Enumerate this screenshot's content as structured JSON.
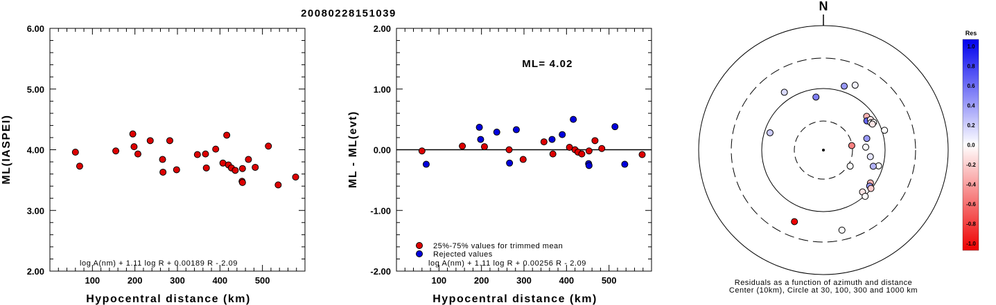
{
  "title": "20080228151039",
  "chart_data": [
    {
      "type": "scatter",
      "xlabel": "Hypocentral distance (km)",
      "ylabel": "ML(IASPEI)",
      "xlim": [
        0,
        600
      ],
      "ylim": [
        2.0,
        6.0
      ],
      "xticks": [
        "100",
        "200",
        "300",
        "400",
        "500"
      ],
      "yticks": [
        "2.00",
        "3.00",
        "4.00",
        "5.00",
        "6.00"
      ],
      "annotation": "log A(nm) + 1.11 log R + 0.00189 R - 2.09",
      "series": [
        {
          "color": "#dd0000",
          "points": [
            [
              60,
              3.96
            ],
            [
              70,
              3.73
            ],
            [
              155,
              3.98
            ],
            [
              195,
              4.26
            ],
            [
              198,
              4.05
            ],
            [
              207,
              3.93
            ],
            [
              236,
              4.15
            ],
            [
              265,
              3.84
            ],
            [
              266,
              3.63
            ],
            [
              282,
              4.15
            ],
            [
              298,
              3.67
            ],
            [
              347,
              3.92
            ],
            [
              366,
              3.93
            ],
            [
              368,
              3.7
            ],
            [
              390,
              4.01
            ],
            [
              407,
              3.78
            ],
            [
              416,
              4.24
            ],
            [
              420,
              3.75
            ],
            [
              427,
              3.7
            ],
            [
              436,
              3.66
            ],
            [
              452,
              3.48
            ],
            [
              453,
              3.46
            ],
            [
              453,
              3.69
            ],
            [
              467,
              3.84
            ],
            [
              483,
              3.71
            ],
            [
              514,
              4.06
            ],
            [
              537,
              3.42
            ],
            [
              578,
              3.55
            ]
          ]
        }
      ]
    },
    {
      "type": "scatter",
      "xlabel": "Hypocentral distance (km)",
      "ylabel": "ML - ML(evt)",
      "xlim": [
        0,
        600
      ],
      "ylim": [
        -2.0,
        2.0
      ],
      "xticks": [
        "100",
        "200",
        "300",
        "400",
        "500"
      ],
      "yticks": [
        "-2.00",
        "-1.00",
        "0.00",
        "1.00",
        "2.00"
      ],
      "ml_label": "ML= 4.02",
      "annotation": "log A(nm) + 1.11 log R + 0.00256 R - 2.09",
      "legend": [
        "25%-75% values for trimmed mean",
        "Rejected values"
      ],
      "legend_position": "bottom-left",
      "series": [
        {
          "color": "#dd0000",
          "points": [
            [
              60,
              -0.02
            ],
            [
              155,
              0.06
            ],
            [
              207,
              0.05
            ],
            [
              265,
              0.0
            ],
            [
              298,
              -0.16
            ],
            [
              347,
              0.13
            ],
            [
              368,
              -0.07
            ],
            [
              407,
              0.04
            ],
            [
              420,
              0.0
            ],
            [
              427,
              -0.04
            ],
            [
              436,
              -0.07
            ],
            [
              453,
              -0.02
            ],
            [
              467,
              0.15
            ],
            [
              483,
              0.02
            ],
            [
              578,
              -0.08
            ]
          ]
        },
        {
          "color": "#0000dd",
          "points": [
            [
              70,
              -0.24
            ],
            [
              195,
              0.37
            ],
            [
              198,
              0.17
            ],
            [
              236,
              0.29
            ],
            [
              266,
              -0.22
            ],
            [
              282,
              0.33
            ],
            [
              366,
              0.17
            ],
            [
              390,
              0.25
            ],
            [
              416,
              0.5
            ],
            [
              452,
              -0.23
            ],
            [
              453,
              -0.26
            ],
            [
              514,
              0.38
            ],
            [
              537,
              -0.24
            ]
          ]
        }
      ]
    },
    {
      "type": "scatter",
      "subtype": "polar-residuals",
      "north_label": "N",
      "caption": [
        "Residuals as a function of azimuth and distance",
        "Center (10km), Circle at 30, 100, 300 and 1000 km"
      ],
      "colorbar": {
        "title": "Res",
        "labels": [
          "1.0",
          "0.8",
          "0.6",
          "0.4",
          "0.2",
          "0.0",
          "-0.2",
          "-0.4",
          "-0.6",
          "-0.8",
          "-1.0"
        ]
      },
      "points": [
        {
          "az": 326,
          "dist": 560,
          "res": 0.15
        },
        {
          "az": 352,
          "dist": 430,
          "res": 0.5
        },
        {
          "az": 18,
          "dist": 540,
          "res": 0.4
        },
        {
          "az": 26,
          "dist": 580,
          "res": 0.05
        },
        {
          "az": 52,
          "dist": 440,
          "res": -0.3
        },
        {
          "az": 56,
          "dist": 420,
          "res": 0.6
        },
        {
          "az": 57,
          "dist": 450,
          "res": -0.1
        },
        {
          "az": 60,
          "dist": 440,
          "res": 0.0
        },
        {
          "az": 61,
          "dist": 460,
          "res": 0.0
        },
        {
          "az": 62,
          "dist": 445,
          "res": -0.1
        },
        {
          "az": 72,
          "dist": 515,
          "res": 0.0
        },
        {
          "az": 75,
          "dist": 360,
          "res": 0.4
        },
        {
          "az": 81,
          "dist": 230,
          "res": -0.5
        },
        {
          "az": 86,
          "dist": 340,
          "res": 0.0
        },
        {
          "az": 98,
          "dist": 380,
          "res": 0.1
        },
        {
          "az": 106,
          "dist": 460,
          "res": 0.0
        },
        {
          "az": 108,
          "dist": 420,
          "res": 0.3
        },
        {
          "az": 121,
          "dist": 250,
          "res": 0.0
        },
        {
          "az": 125,
          "dist": 460,
          "res": -0.3
        },
        {
          "az": 128,
          "dist": 470,
          "res": 0.4
        },
        {
          "az": 129,
          "dist": 490,
          "res": -0.2
        },
        {
          "az": 137,
          "dist": 460,
          "res": -0.1
        },
        {
          "az": 138,
          "dist": 500,
          "res": 0.0
        },
        {
          "az": 167,
          "dist": 660,
          "res": 0.0
        },
        {
          "az": 202,
          "dist": 620,
          "res": -1.0
        },
        {
          "az": 288,
          "dist": 450,
          "res": 0.2
        }
      ]
    }
  ]
}
